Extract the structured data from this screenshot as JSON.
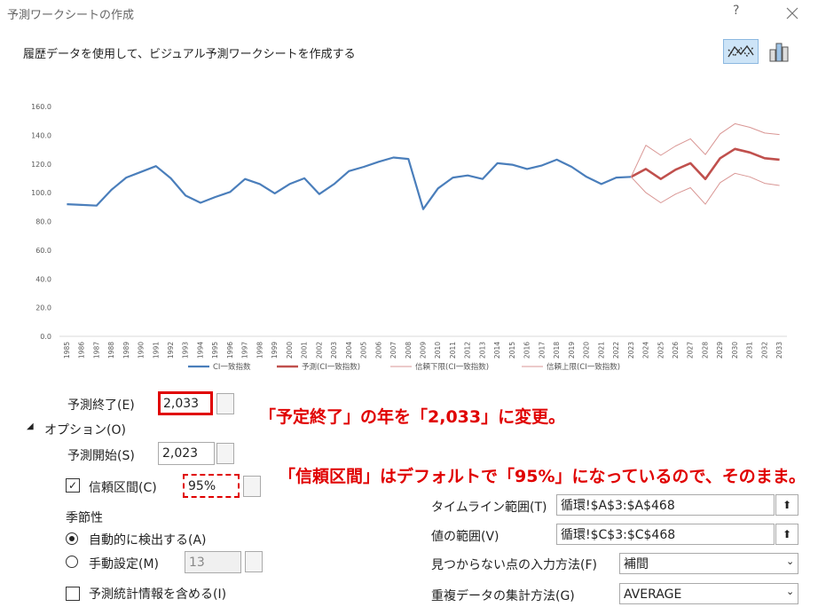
{
  "dialog": {
    "title": "予測ワークシートの作成",
    "help": "?",
    "description": "履歴データを使用して、ビジュアル予測ワークシートを作成する"
  },
  "chart_data": {
    "type": "line",
    "categories": [
      "1985",
      "1986",
      "1987",
      "1988",
      "1989",
      "1990",
      "1991",
      "1992",
      "1993",
      "1994",
      "1995",
      "1996",
      "1997",
      "1998",
      "1999",
      "2000",
      "2001",
      "2002",
      "2003",
      "2004",
      "2005",
      "2006",
      "2007",
      "2008",
      "2009",
      "2010",
      "2011",
      "2012",
      "2013",
      "2014",
      "2015",
      "2016",
      "2017",
      "2018",
      "2019",
      "2020",
      "2021",
      "2022",
      "2023",
      "2024",
      "2025",
      "2026",
      "2027",
      "2028",
      "2029",
      "2030",
      "2031",
      "2032",
      "2033"
    ],
    "ylim": [
      0,
      160
    ],
    "yticks": [
      {
        "value": 0,
        "label": "0.0"
      },
      {
        "value": 20,
        "label": "20.0"
      },
      {
        "value": 40,
        "label": "40.0"
      },
      {
        "value": 60,
        "label": "60.0"
      },
      {
        "value": 80,
        "label": "80.0"
      },
      {
        "value": 100,
        "label": "100.0"
      },
      {
        "value": 120,
        "label": "120.0"
      },
      {
        "value": 140,
        "label": "140.0"
      },
      {
        "value": 160,
        "label": "160.0"
      }
    ],
    "legend": "bottom",
    "series": [
      {
        "name": "CI一致指数",
        "color": "#4a7ebb",
        "width": 2.2,
        "values": [
          92,
          91.5,
          91,
          102,
          110.5,
          114.5,
          118.5,
          110,
          98,
          93,
          97,
          100.5,
          109.5,
          106,
          99.5,
          106,
          110,
          99,
          106,
          115,
          118,
          121.5,
          124.5,
          123.5,
          88.5,
          103,
          110.5,
          112,
          109.5,
          120.5,
          119.5,
          116.5,
          119,
          123,
          118,
          111,
          106,
          110.5,
          111,
          null,
          null,
          null,
          null,
          null,
          null,
          null,
          null,
          null,
          null
        ]
      },
      {
        "name": "予測(CI一致指数)",
        "color": "#c0504d",
        "width": 2.6,
        "values": [
          null,
          null,
          null,
          null,
          null,
          null,
          null,
          null,
          null,
          null,
          null,
          null,
          null,
          null,
          null,
          null,
          null,
          null,
          null,
          null,
          null,
          null,
          null,
          null,
          null,
          null,
          null,
          null,
          null,
          null,
          null,
          null,
          null,
          null,
          null,
          null,
          null,
          null,
          111,
          116.5,
          109.5,
          116,
          120.5,
          109.5,
          124,
          130.5,
          128,
          124,
          123
        ]
      },
      {
        "name": "信頼下限(CI一致指数)",
        "color": "#d99694",
        "width": 1,
        "values": [
          null,
          null,
          null,
          null,
          null,
          null,
          null,
          null,
          null,
          null,
          null,
          null,
          null,
          null,
          null,
          null,
          null,
          null,
          null,
          null,
          null,
          null,
          null,
          null,
          null,
          null,
          null,
          null,
          null,
          null,
          null,
          null,
          null,
          null,
          null,
          null,
          null,
          null,
          111,
          100,
          93,
          99,
          103.5,
          92,
          107,
          113.5,
          111,
          106.5,
          105
        ]
      },
      {
        "name": "信頼上限(CI一致指数)",
        "color": "#d99694",
        "width": 1,
        "values": [
          null,
          null,
          null,
          null,
          null,
          null,
          null,
          null,
          null,
          null,
          null,
          null,
          null,
          null,
          null,
          null,
          null,
          null,
          null,
          null,
          null,
          null,
          null,
          null,
          null,
          null,
          null,
          null,
          null,
          null,
          null,
          null,
          null,
          null,
          null,
          null,
          null,
          null,
          111,
          133,
          126,
          132.5,
          137.5,
          126.5,
          141,
          148,
          145.5,
          141.5,
          140.5
        ]
      }
    ]
  },
  "form": {
    "forecast_end": {
      "label": "予測終了(E)",
      "value": "2,033"
    },
    "options": "オプション(O)",
    "forecast_start": {
      "label": "予測開始(S)",
      "value": "2,023"
    },
    "confidence": {
      "label": "信頼区間(C)",
      "value": "95%"
    },
    "seasonality": {
      "label": "季節性",
      "auto": "自動的に検出する(A)",
      "manual": "手動設定(M)",
      "manual_value": "13"
    },
    "include_stats": "予測統計情報を含める(I)",
    "timeline": {
      "label": "タイムライン範囲(T)",
      "value": "循環!$A$3:$A$468"
    },
    "values_range": {
      "label": "値の範囲(V)",
      "value": "循環!$C$3:$C$468"
    },
    "missing": {
      "label": "見つからない点の入力方法(F)",
      "value": "補間"
    },
    "aggregate": {
      "label": "重複データの集計方法(G)",
      "value": "AVERAGE"
    }
  },
  "annotations": [
    "「予定終了」の年を「2,033」に変更。",
    "「信頼区間」はデフォルトで「95%」になっているので、そのまま。"
  ]
}
